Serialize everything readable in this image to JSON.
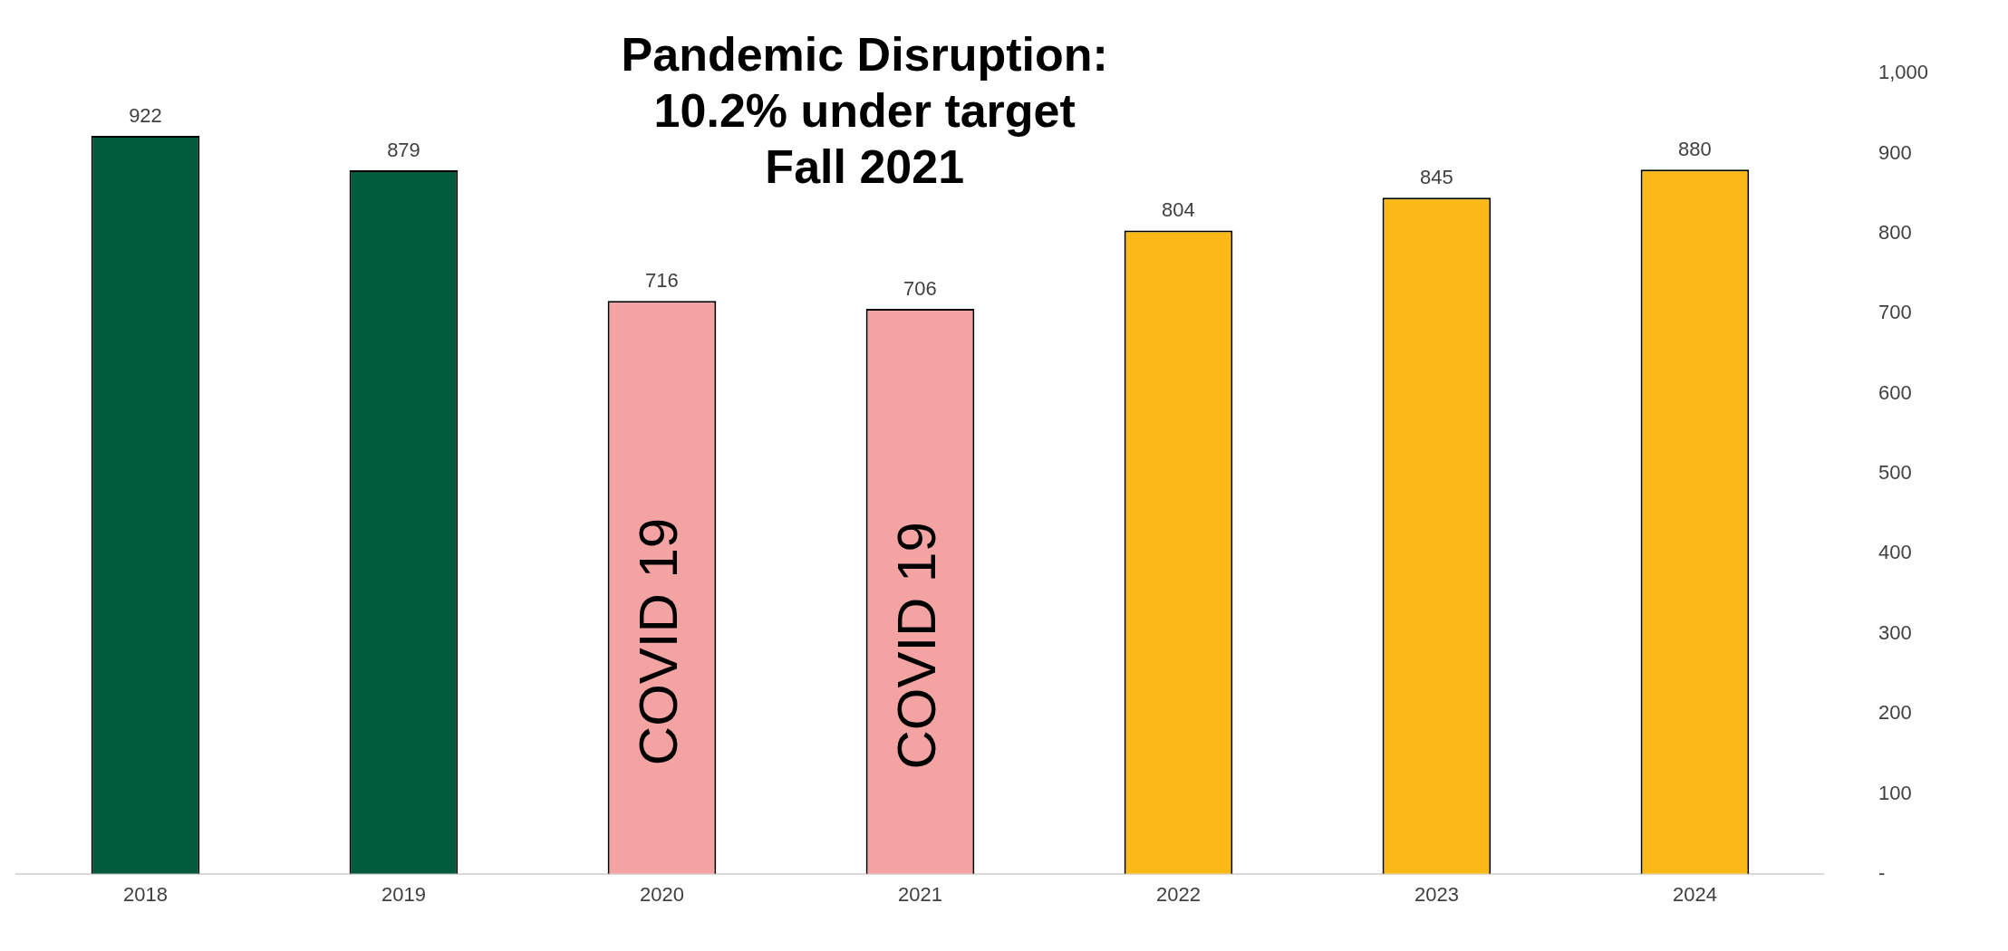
{
  "chart_data": {
    "type": "bar",
    "title": "Pandemic Disruption:\n10.2% under target\nFall 2021",
    "categories": [
      "2018",
      "2019",
      "2020",
      "2021",
      "2022",
      "2023",
      "2024"
    ],
    "values": [
      922,
      879,
      716,
      706,
      804,
      845,
      880
    ],
    "colors": [
      "#005a3c",
      "#005a3c",
      "#f4a3a3",
      "#f4a3a3",
      "#fbb917",
      "#fbb917",
      "#fbb917"
    ],
    "data_labels": true,
    "grid": false,
    "legend": false,
    "ylim": [
      0,
      1000
    ],
    "yticks": [
      {
        "value": 0,
        "label": "-"
      },
      100,
      200,
      300,
      400,
      500,
      600,
      700,
      800,
      900,
      {
        "value": 1000,
        "label": "1,000"
      }
    ],
    "annotations": [
      "COVID 19",
      "COVID 19"
    ]
  }
}
